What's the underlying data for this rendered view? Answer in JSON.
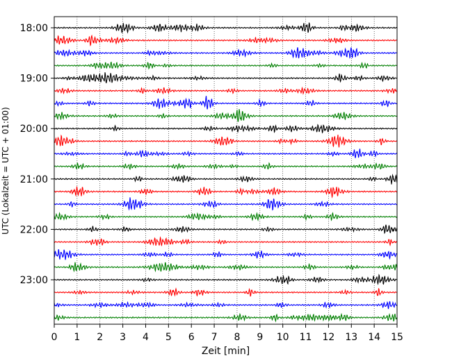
{
  "chart_data": {
    "type": "line",
    "title": "",
    "xlabel": "Zeit  [min]",
    "ylabel": "UTC (Lokalzeit = UTC + 01:00)",
    "xlim": [
      0,
      15
    ],
    "x_ticks": [
      "0",
      "1",
      "2",
      "3",
      "4",
      "5",
      "6",
      "7",
      "8",
      "9",
      "10",
      "11",
      "12",
      "13",
      "14",
      "15"
    ],
    "y_ticks": [
      "18:00",
      "19:00",
      "20:00",
      "21:00",
      "22:00",
      "23:00"
    ],
    "rows_per_hour": 4,
    "minutes_per_row": 15,
    "start_hour": 18,
    "end_hour": 24,
    "grid": {
      "vertical": true,
      "style": "dotted"
    },
    "colors": [
      "#000000",
      "#ff0000",
      "#0000ff",
      "#007f00"
    ]
  }
}
